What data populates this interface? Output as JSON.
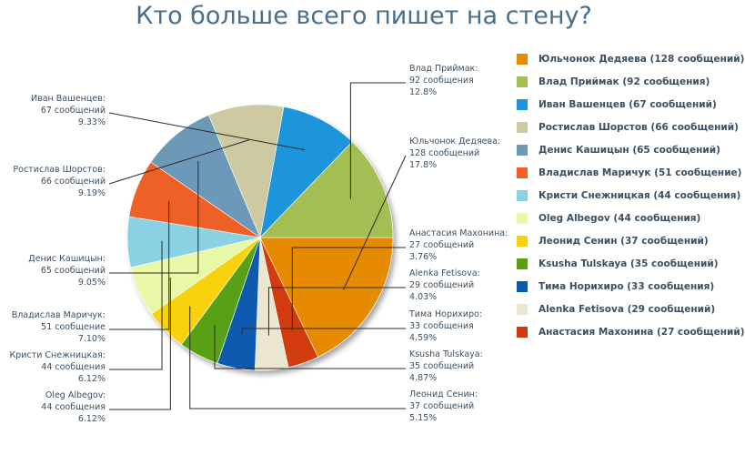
{
  "chart_data": {
    "type": "pie",
    "title": "Кто больше всего пишет на стену?",
    "slices": [
      {
        "name": "Юльчонок Дедяева",
        "count_text": "128 сообщений",
        "percent_text": "17.8%",
        "legend": "Юльчонок Дедяева (128 сообщений)",
        "value": 128,
        "color": "#e68a00",
        "label_side": "right"
      },
      {
        "name": "Анастасия Махонина",
        "count_text": "27 сообщений",
        "percent_text": "3.76%",
        "legend": "Анастасия Махонина (27 сообщений)",
        "value": 27,
        "color": "#d13a0d",
        "label_side": "right"
      },
      {
        "name": "Alenka Fetisova",
        "count_text": "29 сообщений",
        "percent_text": "4.03%",
        "legend": "Alenka Fetisova (29 сообщений)",
        "value": 29,
        "color": "#eae6cf",
        "label_side": "right"
      },
      {
        "name": "Тима Норихиро",
        "count_text": "33 сообщения",
        "percent_text": "4.59%",
        "legend": "Тима Норихиро (33 сообщения)",
        "value": 33,
        "color": "#0a5ab0",
        "label_side": "right"
      },
      {
        "name": "Ksusha Tulskaya",
        "count_text": "35 сообщений",
        "percent_text": "4.87%",
        "legend": "Ksusha Tulskaya (35 сообщений)",
        "value": 35,
        "color": "#58a012",
        "label_side": "right"
      },
      {
        "name": "Леонид Сенин",
        "count_text": "37 сообщений",
        "percent_text": "5.15%",
        "legend": "Леонид Сенин (37 сообщений)",
        "value": 37,
        "color": "#f7d20a",
        "label_side": "right"
      },
      {
        "name": "Oleg Albegov",
        "count_text": "44 сообщения",
        "percent_text": "6.12%",
        "legend": "Oleg Albegov (44 сообщения)",
        "value": 44,
        "color": "#e9f8a6",
        "label_side": "left"
      },
      {
        "name": "Кристи Снежницкая",
        "count_text": "44 сообщения",
        "percent_text": "6.12%",
        "legend": "Кристи Снежницкая (44 сообщения)",
        "value": 44,
        "color": "#8ad1e3",
        "label_side": "left"
      },
      {
        "name": "Владислав Маричук",
        "count_text": "51 сообщение",
        "percent_text": "7.10%",
        "legend": "Владислав Маричук (51 сообщение)",
        "value": 51,
        "color": "#ef6127",
        "label_side": "left"
      },
      {
        "name": "Денис Кашицын",
        "count_text": "65 сообщений",
        "percent_text": "9.05%",
        "legend": "Денис Кашицын (65 сообщений)",
        "value": 65,
        "color": "#6c99b8",
        "label_side": "left"
      },
      {
        "name": "Ростислав Шорстов",
        "count_text": "66 сообщений",
        "percent_text": "9.19%",
        "legend": "Ростислав Шорстов (66 сообщений)",
        "value": 66,
        "color": "#cdc9a0",
        "label_side": "left"
      },
      {
        "name": "Иван Вашенцев",
        "count_text": "67 сообщений",
        "percent_text": "9.33%",
        "legend": "Иван Вашенцев (67 сообщений)",
        "value": 67,
        "color": "#1b95dd",
        "label_side": "left"
      },
      {
        "name": "Влад Приймак",
        "count_text": "92 сообщения",
        "percent_text": "12.8%",
        "legend": "Влад Приймак (92 сообщения)",
        "value": 92,
        "color": "#a3be52",
        "label_side": "right"
      }
    ],
    "legend_order": [
      0,
      12,
      11,
      10,
      9,
      8,
      7,
      6,
      5,
      4,
      3,
      2,
      1
    ],
    "legend_position": "right",
    "start_angle_deg": 0,
    "direction": "clockwise"
  }
}
